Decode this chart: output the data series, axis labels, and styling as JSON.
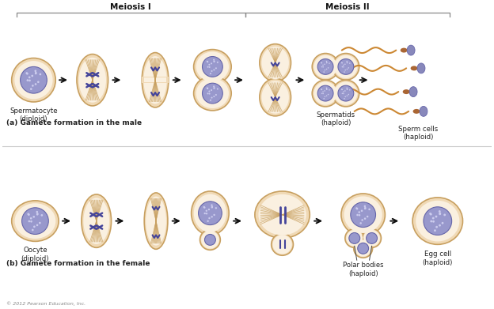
{
  "title_meiosis1": "Meiosis I",
  "title_meiosis2": "Meiosis II",
  "label_a": "(a) Gamete formation in the male",
  "label_b": "(b) Gamete formation in the female",
  "label_spermatocyte": "Spermatocyte\n(diploid)",
  "label_spermatids": "Spermatids\n(haploid)",
  "label_sperm_cells": "Sperm cells\n(haploid)",
  "label_oocyte": "Oocyte\n(diploid)",
  "label_polar": "Polar bodies\n(haploid)",
  "label_egg": "Egg cell\n(haploid)",
  "label_copyright": "© 2012 Pearson Education, Inc.",
  "bg_color": "#ffffff",
  "cell_fill": "#f0d9b5",
  "cell_edge": "#c8a060",
  "cell_inner": "#faf0e0",
  "nucleus_fill": "#9898cc",
  "nucleus_edge": "#6666aa",
  "chrom_color": "#44449a",
  "spindle_color": "#c8a060",
  "arrow_color": "#111111",
  "text_color": "#222222",
  "bold_text": "#111111",
  "bracket_color": "#888888",
  "sperm_head": "#8888bb",
  "sperm_mid": "#aa6633",
  "sperm_tail": "#cc8833",
  "divider_color": "#cccccc"
}
